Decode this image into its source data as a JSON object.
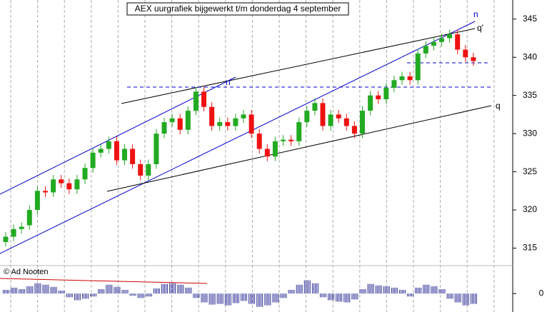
{
  "chart_data": {
    "type": "candlestick",
    "title": "AEX uurgrafiek bijgewerkt t/m donderdag 4 september",
    "annotations": [
      "n",
      "q'",
      "n'",
      "q"
    ],
    "credit": "© Ad Nooten",
    "open": [
      315.8,
      316.5,
      317.5,
      318,
      320,
      322.5,
      322.3,
      324,
      323.5,
      322.7,
      324,
      325.5,
      327.5,
      328,
      329,
      326.5,
      328,
      326,
      324.5,
      326,
      330,
      331.5,
      332,
      330.5,
      333,
      335.5,
      333.5,
      331,
      331.5,
      331,
      332,
      332.5,
      330,
      328,
      327,
      329,
      329.2,
      329,
      331.5,
      333,
      334,
      331,
      332.5,
      332,
      331,
      330,
      333,
      335,
      334.5,
      336,
      337,
      337.5,
      337,
      340.5,
      341.5,
      342,
      342.5,
      343,
      341,
      340
    ],
    "high": [
      317.1,
      318.1,
      318.4,
      320.6,
      323.1,
      323.1,
      324.6,
      324.6,
      324.1,
      324.6,
      326.1,
      328.1,
      328.6,
      329.6,
      329.6,
      328.6,
      328.6,
      326.6,
      326.6,
      330.6,
      332.1,
      332.6,
      332.6,
      333.6,
      336.1,
      336.1,
      334.1,
      332.1,
      332.1,
      332.6,
      333.1,
      333.1,
      330.6,
      328.6,
      329.6,
      329.8,
      329.8,
      332.1,
      333.6,
      334.6,
      334.6,
      333.1,
      333.1,
      332.6,
      331.6,
      333.6,
      335.6,
      335.6,
      336.6,
      337.6,
      338.1,
      338.1,
      341.1,
      342.1,
      342.6,
      343.1,
      343.6,
      343.6,
      341.6,
      340.6
    ],
    "low": [
      315.2,
      315.9,
      316.9,
      317.4,
      319.4,
      321.7,
      321.7,
      322.9,
      322.1,
      322.1,
      323.4,
      324.9,
      326.9,
      327.4,
      325.9,
      325.9,
      325.4,
      323.9,
      323.9,
      325.4,
      329.4,
      330.9,
      329.9,
      329.9,
      332.4,
      332.9,
      330.4,
      330.4,
      330.4,
      330.4,
      331.4,
      329.4,
      327.4,
      326.4,
      326.4,
      328.4,
      328.4,
      328.4,
      330.9,
      332.4,
      330.4,
      330.4,
      331.4,
      330.4,
      329.4,
      329.4,
      332.4,
      333.9,
      333.9,
      335.4,
      336.4,
      336.4,
      336.4,
      339.9,
      340.9,
      341.4,
      341.9,
      340.4,
      339.4,
      338.9
    ],
    "close": [
      316.5,
      317.5,
      317.8,
      320,
      322.5,
      322.3,
      324,
      323.5,
      322.7,
      324,
      325.5,
      327.5,
      328,
      329,
      326.5,
      328,
      326,
      324.5,
      326,
      330,
      331.5,
      332,
      330.5,
      333,
      335.5,
      333.5,
      331,
      331.5,
      331,
      332,
      332.5,
      330,
      328,
      327,
      329,
      329.2,
      329,
      331.5,
      333,
      334,
      331,
      332.5,
      332,
      331,
      330,
      333,
      335,
      334.5,
      336,
      337,
      337.5,
      337,
      340.5,
      341.5,
      342,
      342.5,
      343,
      341,
      340,
      339.5
    ],
    "up_color": "#22aa22",
    "down_color": "#ee1111",
    "ylim": [
      312.9,
      347.5
    ],
    "yticks": [
      315,
      320,
      325,
      330,
      335,
      340,
      345
    ],
    "oscillator": {
      "values": [
        0.5,
        0.8,
        0.6,
        1.0,
        1.4,
        1.2,
        0.9,
        0.4,
        -0.5,
        -0.9,
        -0.7,
        -0.4,
        0.6,
        1.2,
        0.9,
        0.5,
        -0.3,
        -0.6,
        -0.4,
        0.7,
        1.3,
        1.4,
        1.2,
        0.8,
        -0.6,
        -1.2,
        -1.5,
        -1.4,
        -1.6,
        -1.3,
        -1.0,
        -1.4,
        -1.8,
        -1.6,
        -1.2,
        -0.6,
        0.5,
        1.2,
        1.8,
        1.4,
        -0.5,
        -0.9,
        -1.1,
        -1.2,
        -0.8,
        0.6,
        1.3,
        1.1,
        1.0,
        0.8,
        0.5,
        -0.4,
        0.8,
        1.2,
        1.0,
        0.6,
        -0.7,
        -1.2,
        -1.6,
        -1.4
      ],
      "color": "#333399",
      "ylim": [
        -2.5,
        3.5
      ],
      "yticks": [
        0
      ]
    }
  }
}
